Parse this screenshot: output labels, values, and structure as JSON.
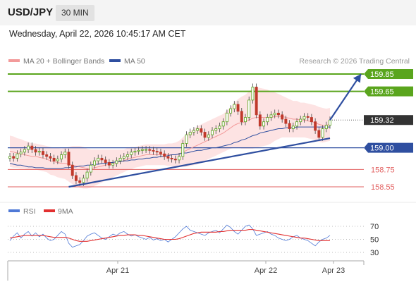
{
  "header": {
    "symbol": "USD/JPY",
    "timeframe": "30 MIN",
    "datetime": "Wednesday, April 22, 2026 10:45:17 AM CET"
  },
  "legend": {
    "ma20_label": "MA 20 + Bollinger Bands",
    "ma50_label": "MA 50",
    "copyright": "Research © 2026 Trading Central",
    "rsi_label": "RSI",
    "ma9_label": "9MA"
  },
  "colors": {
    "green": "#5aa51d",
    "blue": "#2f4fa0",
    "red": "#e26060",
    "boll_fill": "#fde0e0",
    "ma20": "#f39a9a",
    "ma50": "#2f4fa0",
    "bull": "#5aa51d",
    "bear": "#c0392b",
    "rsi": "#4f79d6",
    "rsi_ma": "#e23030",
    "current": "#333333"
  },
  "chart_data": [
    {
      "type": "candlestick",
      "title": "USD/JPY",
      "ylim": [
        158.35,
        159.98
      ],
      "x_ticks": [
        "Apr 21",
        "Apr 22",
        "Apr 23"
      ],
      "levels": [
        {
          "value": 159.85,
          "label": "159.85",
          "kind": "resistance",
          "color": "#5aa51d"
        },
        {
          "value": 159.65,
          "label": "159.65",
          "kind": "resistance",
          "color": "#5aa51d"
        },
        {
          "value": 159.32,
          "label": "159.32",
          "kind": "current",
          "color": "#333333"
        },
        {
          "value": 159.0,
          "label": "159.00",
          "kind": "pivot",
          "color": "#2f4fa0"
        },
        {
          "value": 158.75,
          "label": "158.75",
          "kind": "support",
          "color": "#e26060"
        },
        {
          "value": 158.55,
          "label": "158.55",
          "kind": "support",
          "color": "#e26060"
        }
      ],
      "close_series": [
        158.9,
        158.88,
        158.93,
        158.95,
        158.98,
        159.02,
        158.98,
        158.95,
        158.96,
        158.92,
        158.9,
        158.88,
        158.85,
        158.87,
        158.92,
        158.95,
        158.8,
        158.68,
        158.62,
        158.6,
        158.65,
        158.72,
        158.8,
        158.85,
        158.88,
        158.86,
        158.83,
        158.8,
        158.82,
        158.85,
        158.88,
        158.9,
        158.92,
        158.95,
        158.96,
        158.97,
        158.98,
        158.98,
        158.97,
        158.96,
        158.95,
        158.93,
        158.9,
        158.88,
        158.87,
        158.86,
        158.9,
        159.05,
        159.15,
        159.18,
        159.2,
        159.22,
        159.18,
        159.12,
        159.15,
        159.2,
        159.22,
        159.25,
        159.3,
        159.4,
        159.45,
        159.5,
        159.42,
        159.3,
        159.35,
        159.55,
        159.7,
        159.38,
        159.25,
        159.3,
        159.35,
        159.38,
        159.4,
        159.38,
        159.33,
        159.28,
        159.22,
        159.25,
        159.3,
        159.33,
        159.36,
        159.35,
        159.3,
        159.2,
        159.12,
        159.22,
        159.26,
        159.32
      ],
      "ma20": [
        158.96,
        158.95,
        158.94,
        158.93,
        158.92,
        158.91,
        158.9,
        158.9,
        158.89,
        158.88,
        158.87,
        158.85,
        158.84,
        158.83,
        158.82,
        158.82,
        158.81,
        158.8,
        158.79,
        158.78,
        158.77,
        158.76,
        158.76,
        158.77,
        158.78,
        158.79,
        158.8,
        158.81,
        158.82,
        158.83,
        158.84,
        158.85,
        158.87,
        158.88,
        158.89,
        158.9,
        158.91,
        158.92,
        158.92,
        158.92,
        158.92,
        158.92,
        158.92,
        158.92,
        158.92,
        158.92,
        158.93,
        158.95,
        158.97,
        158.99,
        159.01,
        159.03,
        159.05,
        159.07,
        159.09,
        159.11,
        159.13,
        159.15,
        159.17,
        159.2,
        159.23,
        159.26,
        159.28,
        159.29,
        159.3,
        159.32,
        159.34,
        159.35,
        159.35,
        159.35,
        159.35,
        159.35,
        159.36,
        159.36,
        159.36,
        159.35,
        159.34,
        159.33,
        159.33,
        159.32,
        159.32,
        159.31,
        159.3,
        159.29,
        159.27,
        159.26,
        159.26,
        159.27
      ],
      "ma50": [
        158.82,
        158.81,
        158.8,
        158.8,
        158.79,
        158.78,
        158.78,
        158.77,
        158.77,
        158.77,
        158.76,
        158.76,
        158.76,
        158.76,
        158.76,
        158.77,
        158.77,
        158.78,
        158.78,
        158.79,
        158.79,
        158.8,
        158.8,
        158.81,
        158.81,
        158.82,
        158.82,
        158.83,
        158.83,
        158.84,
        158.84,
        158.85,
        158.85,
        158.86,
        158.86,
        158.87,
        158.87,
        158.88,
        158.88,
        158.89,
        158.89,
        158.9,
        158.9,
        158.91,
        158.92,
        158.92,
        158.93,
        158.94,
        158.94,
        158.95,
        158.96,
        158.97,
        158.97,
        158.98,
        158.99,
        159.0,
        159.0,
        159.01,
        159.02,
        159.03,
        159.04,
        159.06,
        159.07,
        159.09,
        159.1,
        159.12,
        159.14,
        159.15,
        159.17,
        159.18,
        159.19,
        159.2,
        159.21,
        159.22,
        159.22,
        159.23,
        159.23,
        159.23,
        159.24,
        159.24,
        159.24,
        159.24,
        159.24,
        159.24,
        159.24,
        159.24,
        159.24,
        159.24
      ],
      "bollinger_halfwidth": [
        0.18,
        0.18,
        0.17,
        0.17,
        0.16,
        0.16,
        0.15,
        0.15,
        0.15,
        0.15,
        0.15,
        0.16,
        0.16,
        0.17,
        0.17,
        0.18,
        0.2,
        0.22,
        0.23,
        0.24,
        0.24,
        0.23,
        0.22,
        0.21,
        0.2,
        0.19,
        0.18,
        0.17,
        0.16,
        0.15,
        0.14,
        0.13,
        0.13,
        0.13,
        0.12,
        0.12,
        0.12,
        0.12,
        0.12,
        0.12,
        0.12,
        0.12,
        0.12,
        0.13,
        0.13,
        0.14,
        0.15,
        0.17,
        0.19,
        0.2,
        0.21,
        0.22,
        0.22,
        0.22,
        0.22,
        0.22,
        0.22,
        0.22,
        0.22,
        0.23,
        0.24,
        0.26,
        0.28,
        0.3,
        0.31,
        0.33,
        0.35,
        0.35,
        0.34,
        0.33,
        0.32,
        0.3,
        0.28,
        0.26,
        0.24,
        0.23,
        0.22,
        0.21,
        0.21,
        0.2,
        0.2,
        0.2,
        0.2,
        0.2,
        0.2,
        0.2,
        0.19,
        0.19
      ],
      "trendlines": [
        {
          "from": {
            "index": 16,
            "value": 158.55
          },
          "to": {
            "index": 87,
            "value": 159.11
          },
          "color": "#2f4fa0"
        },
        {
          "from": {
            "index": 87,
            "value": 159.32
          },
          "to": {
            "index": 96,
            "value": 159.85
          },
          "color": "#2f4fa0",
          "arrow": true
        }
      ]
    },
    {
      "type": "line",
      "title": "RSI",
      "ylim": [
        20,
        80
      ],
      "y_ticks": [
        70,
        50,
        30
      ],
      "series": [
        {
          "name": "RSI",
          "color": "#4f79d6",
          "values": [
            48,
            55,
            60,
            52,
            58,
            62,
            55,
            60,
            54,
            58,
            52,
            48,
            50,
            56,
            62,
            58,
            44,
            38,
            40,
            42,
            48,
            55,
            58,
            60,
            56,
            52,
            50,
            54,
            58,
            56,
            60,
            62,
            58,
            55,
            57,
            54,
            52,
            50,
            53,
            49,
            51,
            48,
            50,
            46,
            50,
            54,
            60,
            66,
            70,
            64,
            62,
            60,
            58,
            56,
            60,
            62,
            64,
            60,
            66,
            72,
            68,
            62,
            58,
            64,
            70,
            72,
            66,
            56,
            58,
            60,
            62,
            58,
            56,
            52,
            50,
            48,
            50,
            54,
            56,
            52,
            50,
            48,
            44,
            40,
            46,
            50,
            52,
            56
          ]
        },
        {
          "name": "9MA",
          "color": "#e23030",
          "values": [
            52,
            53,
            54,
            55,
            56,
            56,
            56,
            56,
            56,
            56,
            55,
            54,
            53,
            53,
            53,
            53,
            52,
            50,
            48,
            47,
            47,
            47,
            48,
            49,
            50,
            51,
            52,
            53,
            54,
            55,
            56,
            56,
            57,
            57,
            57,
            56,
            56,
            55,
            54,
            53,
            52,
            51,
            50,
            50,
            50,
            50,
            51,
            53,
            55,
            57,
            59,
            60,
            61,
            61,
            61,
            61,
            61,
            62,
            62,
            63,
            64,
            64,
            64,
            64,
            64,
            65,
            65,
            64,
            63,
            62,
            61,
            60,
            59,
            58,
            57,
            56,
            55,
            54,
            53,
            52,
            52,
            51,
            50,
            49,
            48,
            48,
            48,
            48
          ]
        }
      ]
    }
  ]
}
